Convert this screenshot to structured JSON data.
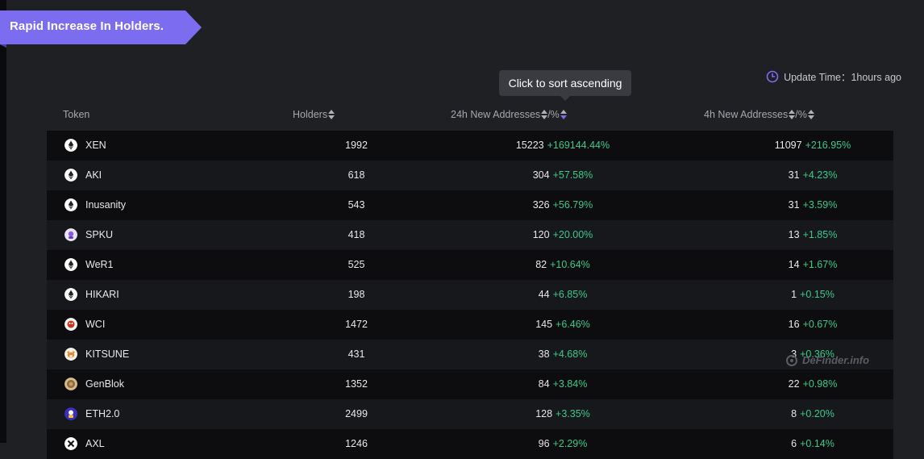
{
  "banner": {
    "title": "Rapid Increase In Holders."
  },
  "update": {
    "label": "Update Time：",
    "value": "1hours ago"
  },
  "tooltip": {
    "text": "Click to sort ascending"
  },
  "table": {
    "headers": {
      "token": "Token",
      "holders": "Holders",
      "addr24": "24h New Addresses",
      "addr4": "4h New Addresses",
      "pct_suffix": "/%"
    },
    "rows": [
      {
        "token": "XEN",
        "icon": "eth-icon",
        "holders": "1992",
        "addr24": "15223",
        "pct24": "+169144.44%",
        "addr4": "11097",
        "pct4": "+216.95%"
      },
      {
        "token": "AKI",
        "icon": "eth-icon",
        "holders": "618",
        "addr24": "304",
        "pct24": "+57.58%",
        "addr4": "31",
        "pct4": "+4.23%"
      },
      {
        "token": "Inusanity",
        "icon": "eth-icon",
        "holders": "543",
        "addr24": "326",
        "pct24": "+56.79%",
        "addr4": "31",
        "pct4": "+3.59%"
      },
      {
        "token": "SPKU",
        "icon": "spku-icon",
        "holders": "418",
        "addr24": "120",
        "pct24": "+20.00%",
        "addr4": "13",
        "pct4": "+1.85%"
      },
      {
        "token": "WeR1",
        "icon": "eth-icon",
        "holders": "525",
        "addr24": "82",
        "pct24": "+10.64%",
        "addr4": "14",
        "pct4": "+1.67%"
      },
      {
        "token": "HIKARI",
        "icon": "eth-icon",
        "holders": "198",
        "addr24": "44",
        "pct24": "+6.85%",
        "addr4": "1",
        "pct4": "+0.15%"
      },
      {
        "token": "WCI",
        "icon": "wci-icon",
        "holders": "1472",
        "addr24": "145",
        "pct24": "+6.46%",
        "addr4": "16",
        "pct4": "+0.67%"
      },
      {
        "token": "KITSUNE",
        "icon": "kitsune-icon",
        "holders": "431",
        "addr24": "38",
        "pct24": "+4.68%",
        "addr4": "3",
        "pct4": "+0.36%"
      },
      {
        "token": "GenBlok",
        "icon": "genblok-icon",
        "holders": "1352",
        "addr24": "84",
        "pct24": "+3.84%",
        "addr4": "22",
        "pct4": "+0.98%"
      },
      {
        "token": "ETH2.0",
        "icon": "eth2-icon",
        "holders": "2499",
        "addr24": "128",
        "pct24": "+3.35%",
        "addr4": "8",
        "pct4": "+0.20%"
      },
      {
        "token": "AXL",
        "icon": "axl-icon",
        "holders": "1246",
        "addr24": "96",
        "pct24": "+2.29%",
        "addr4": "6",
        "pct4": "+0.14%"
      }
    ]
  },
  "watermark": {
    "text": "DeFinder.info"
  },
  "colors": {
    "accent": "#7b6cf0",
    "positive": "#3cc98a",
    "banner": "#7b6cf0"
  }
}
